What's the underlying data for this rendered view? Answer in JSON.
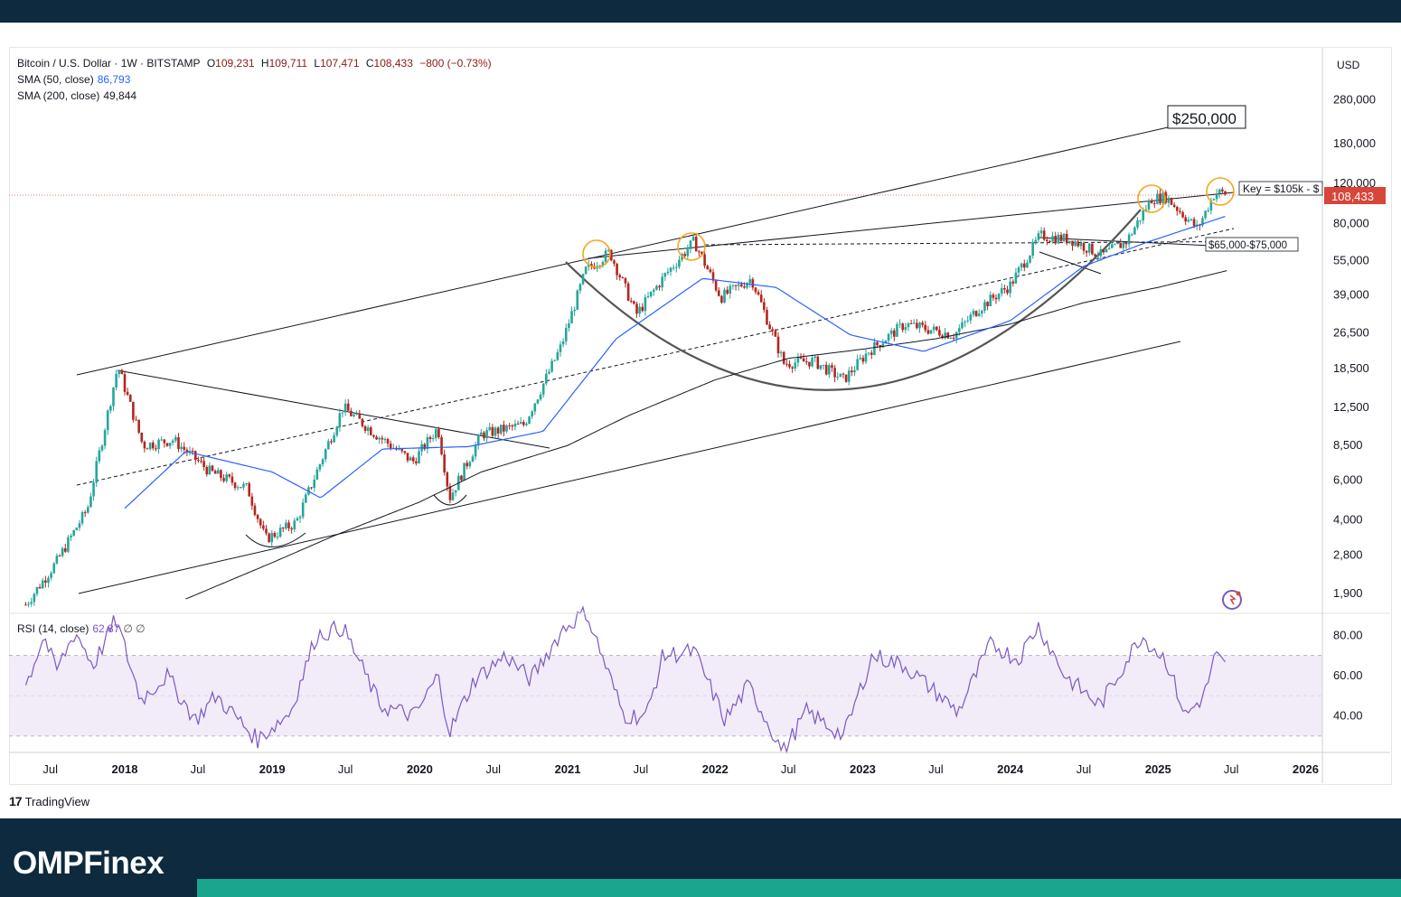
{
  "header": {
    "symbol": "Bitcoin / U.S. Dollar · 1W · BITSTAMP",
    "open_label": "O",
    "open": "109,231",
    "high_label": "H",
    "high": "109,711",
    "low_label": "L",
    "low": "107,471",
    "close_label": "C",
    "close": "108,433",
    "change": "−800 (−0.73%)",
    "sma50_label": "SMA (50, close)",
    "sma50_value": "86,793",
    "sma200_label": "SMA (200, close)",
    "sma200_value": "49,844",
    "rsi_label": "RSI (14, close)",
    "rsi_value": "62.87",
    "rsi_extra": "∅  ∅"
  },
  "currency": "USD",
  "last_price_tag": "108,433",
  "annotations": {
    "target": "$250,000",
    "key": "Key = $105k - $",
    "support": "$65,000-$75,000"
  },
  "footer": {
    "tradingview": "TradingView",
    "brand_left": "OMPF",
    "brand_i": "i",
    "brand_right": "nex"
  },
  "colors": {
    "up": "#26a69a",
    "down": "#b3261e",
    "sma50": "#2962ff",
    "sma200": "#131722",
    "rsi": "#7e57c2",
    "price_tag": "#d8453a",
    "circle": "#f5a623"
  },
  "chart_data": [
    {
      "type": "candlestick",
      "title": "Bitcoin / U.S. Dollar · 1W · BITSTAMP",
      "y_scale": "log",
      "ylim": [
        1600,
        350000
      ],
      "y_ticks": [
        "280,000",
        "180,000",
        "120,000",
        "80,000",
        "55,000",
        "39,000",
        "26,500",
        "18,500",
        "12,500",
        "8,500",
        "6,000",
        "4,000",
        "2,800",
        "1,900"
      ],
      "x_ticks": [
        "Jul",
        "2018",
        "Jul",
        "2019",
        "Jul",
        "2020",
        "Jul",
        "2021",
        "Jul",
        "2022",
        "Jul",
        "2023",
        "Jul",
        "2024",
        "Jul",
        "2025",
        "Jul",
        "2026"
      ],
      "price_path": [
        [
          "2017-05-01",
          1700
        ],
        [
          "2017-07-15",
          2600
        ],
        [
          "2017-10-01",
          4500
        ],
        [
          "2017-12-15",
          19000
        ],
        [
          "2018-02-15",
          8500
        ],
        [
          "2018-05-01",
          9000
        ],
        [
          "2018-08-01",
          6500
        ],
        [
          "2018-11-01",
          5500
        ],
        [
          "2018-12-15",
          3300
        ],
        [
          "2019-03-01",
          3900
        ],
        [
          "2019-06-25",
          12500
        ],
        [
          "2019-09-15",
          9500
        ],
        [
          "2019-12-15",
          7200
        ],
        [
          "2020-02-15",
          10200
        ],
        [
          "2020-03-15",
          5000
        ],
        [
          "2020-06-01",
          9500
        ],
        [
          "2020-09-15",
          10500
        ],
        [
          "2020-12-15",
          23000
        ],
        [
          "2021-02-15",
          50000
        ],
        [
          "2021-04-15",
          60000
        ],
        [
          "2021-06-20",
          32000
        ],
        [
          "2021-09-01",
          48000
        ],
        [
          "2021-11-10",
          67000
        ],
        [
          "2022-01-15",
          38000
        ],
        [
          "2022-04-01",
          46000
        ],
        [
          "2022-06-20",
          19500
        ],
        [
          "2022-09-01",
          20000
        ],
        [
          "2022-11-15",
          16500
        ],
        [
          "2023-01-15",
          22000
        ],
        [
          "2023-04-15",
          29000
        ],
        [
          "2023-08-15",
          26000
        ],
        [
          "2023-10-15",
          34000
        ],
        [
          "2024-01-01",
          43000
        ],
        [
          "2024-03-15",
          71000
        ],
        [
          "2024-06-01",
          68000
        ],
        [
          "2024-08-15",
          58000
        ],
        [
          "2024-10-15",
          67000
        ],
        [
          "2024-12-15",
          103000
        ],
        [
          "2025-01-20",
          105000
        ],
        [
          "2025-04-08",
          76000
        ],
        [
          "2025-05-22",
          110000
        ],
        [
          "2025-06-22",
          108433
        ]
      ],
      "sma50": [
        [
          "2018-01-01",
          4500
        ],
        [
          "2018-06-01",
          8000
        ],
        [
          "2019-01-01",
          6500
        ],
        [
          "2019-05-01",
          5000
        ],
        [
          "2019-10-01",
          8200
        ],
        [
          "2020-05-01",
          8400
        ],
        [
          "2020-11-01",
          9800
        ],
        [
          "2021-05-01",
          25000
        ],
        [
          "2021-12-01",
          46000
        ],
        [
          "2022-06-01",
          42000
        ],
        [
          "2022-12-01",
          26000
        ],
        [
          "2023-06-01",
          22000
        ],
        [
          "2024-01-01",
          30000
        ],
        [
          "2024-07-01",
          52000
        ],
        [
          "2024-12-01",
          66000
        ],
        [
          "2025-06-22",
          86793
        ]
      ],
      "sma200": [
        [
          "2018-06-01",
          1800
        ],
        [
          "2019-01-01",
          2600
        ],
        [
          "2019-06-01",
          3400
        ],
        [
          "2020-01-01",
          4800
        ],
        [
          "2020-06-01",
          6500
        ],
        [
          "2021-01-01",
          8500
        ],
        [
          "2021-06-01",
          11500
        ],
        [
          "2022-01-01",
          16500
        ],
        [
          "2022-07-01",
          20500
        ],
        [
          "2023-01-01",
          22500
        ],
        [
          "2023-07-01",
          25000
        ],
        [
          "2024-01-01",
          29000
        ],
        [
          "2024-07-01",
          36000
        ],
        [
          "2025-01-01",
          42000
        ],
        [
          "2025-06-22",
          49844
        ]
      ],
      "last": 108433
    },
    {
      "type": "line",
      "title": "RSI (14, close)",
      "ylim": [
        20,
        95
      ],
      "y_ticks": [
        "80.00",
        "60.00",
        "40.00"
      ],
      "bands": [
        30,
        50,
        70
      ],
      "rsi": [
        [
          "2017-05-01",
          55
        ],
        [
          "2017-06-15",
          80
        ],
        [
          "2017-07-15",
          62
        ],
        [
          "2017-09-01",
          82
        ],
        [
          "2017-10-15",
          65
        ],
        [
          "2017-12-10",
          88
        ],
        [
          "2018-02-10",
          48
        ],
        [
          "2018-04-15",
          60
        ],
        [
          "2018-06-25",
          38
        ],
        [
          "2018-08-15",
          50
        ],
        [
          "2018-11-25",
          28
        ],
        [
          "2019-02-15",
          42
        ],
        [
          "2019-04-20",
          80
        ],
        [
          "2019-06-25",
          84
        ],
        [
          "2019-09-25",
          45
        ],
        [
          "2019-12-20",
          40
        ],
        [
          "2020-02-15",
          60
        ],
        [
          "2020-03-15",
          32
        ],
        [
          "2020-05-15",
          58
        ],
        [
          "2020-08-01",
          70
        ],
        [
          "2020-10-01",
          58
        ],
        [
          "2020-12-20",
          83
        ],
        [
          "2021-02-15",
          92
        ],
        [
          "2021-05-20",
          40
        ],
        [
          "2021-07-15",
          40
        ],
        [
          "2021-08-25",
          70
        ],
        [
          "2021-11-10",
          72
        ],
        [
          "2022-01-25",
          38
        ],
        [
          "2022-03-25",
          55
        ],
        [
          "2022-06-18",
          22
        ],
        [
          "2022-08-15",
          42
        ],
        [
          "2022-11-15",
          30
        ],
        [
          "2023-01-25",
          70
        ],
        [
          "2023-04-15",
          65
        ],
        [
          "2023-08-25",
          42
        ],
        [
          "2023-11-15",
          76
        ],
        [
          "2024-01-20",
          68
        ],
        [
          "2024-03-10",
          85
        ],
        [
          "2024-05-15",
          60
        ],
        [
          "2024-08-10",
          45
        ],
        [
          "2024-11-20",
          80
        ],
        [
          "2025-01-20",
          68
        ],
        [
          "2025-03-10",
          40
        ],
        [
          "2025-04-25",
          50
        ],
        [
          "2025-05-22",
          70
        ],
        [
          "2025-06-22",
          63
        ]
      ]
    }
  ]
}
